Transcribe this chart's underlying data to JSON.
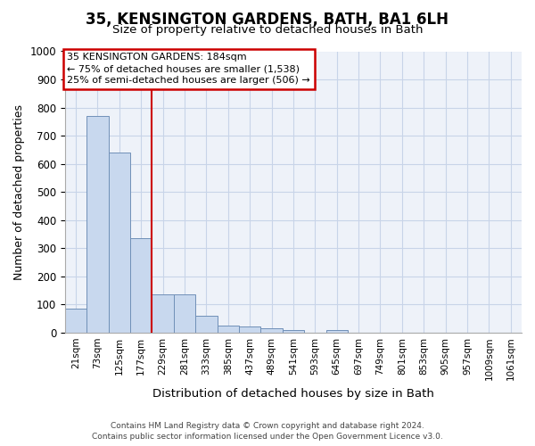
{
  "title_line1": "35, KENSINGTON GARDENS, BATH, BA1 6LH",
  "title_line2": "Size of property relative to detached houses in Bath",
  "xlabel": "Distribution of detached houses by size in Bath",
  "ylabel": "Number of detached properties",
  "categories": [
    "21sqm",
    "73sqm",
    "125sqm",
    "177sqm",
    "229sqm",
    "281sqm",
    "333sqm",
    "385sqm",
    "437sqm",
    "489sqm",
    "541sqm",
    "593sqm",
    "645sqm",
    "697sqm",
    "749sqm",
    "801sqm",
    "853sqm",
    "905sqm",
    "957sqm",
    "1009sqm",
    "1061sqm"
  ],
  "values": [
    85,
    770,
    640,
    335,
    135,
    135,
    60,
    25,
    20,
    15,
    10,
    0,
    10,
    0,
    0,
    0,
    0,
    0,
    0,
    0,
    0
  ],
  "bar_color": "#c8d8ee",
  "bar_edge_color": "#7090b8",
  "vline_x": 3.5,
  "vline_color": "#cc0000",
  "ylim": [
    0,
    1000
  ],
  "yticks": [
    0,
    100,
    200,
    300,
    400,
    500,
    600,
    700,
    800,
    900,
    1000
  ],
  "annotation_box_text_line1": "35 KENSINGTON GARDENS: 184sqm",
  "annotation_box_text_line2": "← 75% of detached houses are smaller (1,538)",
  "annotation_box_text_line3": "25% of semi-detached houses are larger (506) →",
  "annotation_box_color": "#cc0000",
  "footer_line1": "Contains HM Land Registry data © Crown copyright and database right 2024.",
  "footer_line2": "Contains public sector information licensed under the Open Government Licence v3.0.",
  "grid_color": "#c8d4e8",
  "background_color": "#eef2f9"
}
